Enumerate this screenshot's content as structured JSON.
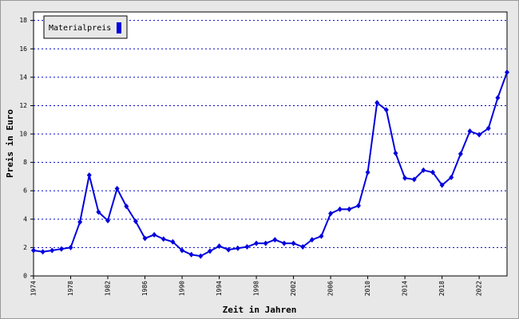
{
  "chart_data": {
    "type": "line",
    "x_label": "Zeit in Jahren",
    "y_label": "Preis in Euro",
    "x": [
      1974,
      1975,
      1976,
      1977,
      1978,
      1979,
      1980,
      1981,
      1982,
      1983,
      1984,
      1985,
      1986,
      1987,
      1988,
      1989,
      1990,
      1991,
      1992,
      1993,
      1994,
      1995,
      1996,
      1997,
      1998,
      1999,
      2000,
      2001,
      2002,
      2003,
      2004,
      2005,
      2006,
      2007,
      2008,
      2009,
      2010,
      2011,
      2012,
      2013,
      2014,
      2015,
      2016,
      2017,
      2018,
      2019,
      2020,
      2021,
      2022,
      2023,
      2024,
      2025
    ],
    "series": [
      {
        "name": "Materialpreis",
        "color": "#0000dd",
        "values": [
          1.8,
          1.7,
          1.8,
          1.9,
          2.0,
          3.8,
          7.1,
          4.5,
          3.9,
          6.15,
          4.9,
          3.85,
          2.65,
          2.9,
          2.6,
          2.4,
          1.8,
          1.5,
          1.4,
          1.75,
          2.1,
          1.85,
          1.95,
          2.05,
          2.3,
          2.3,
          2.55,
          2.3,
          2.3,
          2.05,
          2.55,
          2.8,
          4.4,
          4.7,
          4.7,
          4.95,
          7.3,
          12.2,
          11.7,
          8.65,
          6.9,
          6.8,
          7.45,
          7.3,
          6.4,
          6.95,
          8.6,
          10.2,
          9.95,
          10.4,
          12.55,
          14.35
        ]
      }
    ],
    "xlim": [
      1974,
      2025
    ],
    "xticks": [
      1974,
      1978,
      1982,
      1986,
      1990,
      1994,
      1998,
      2002,
      2006,
      2010,
      2014,
      2018,
      2022
    ],
    "ylim": [
      0,
      18.6
    ],
    "yticks": [
      0,
      2,
      4,
      6,
      8,
      10,
      12,
      14,
      16,
      18
    ],
    "grid": true,
    "legend": "top-left"
  }
}
